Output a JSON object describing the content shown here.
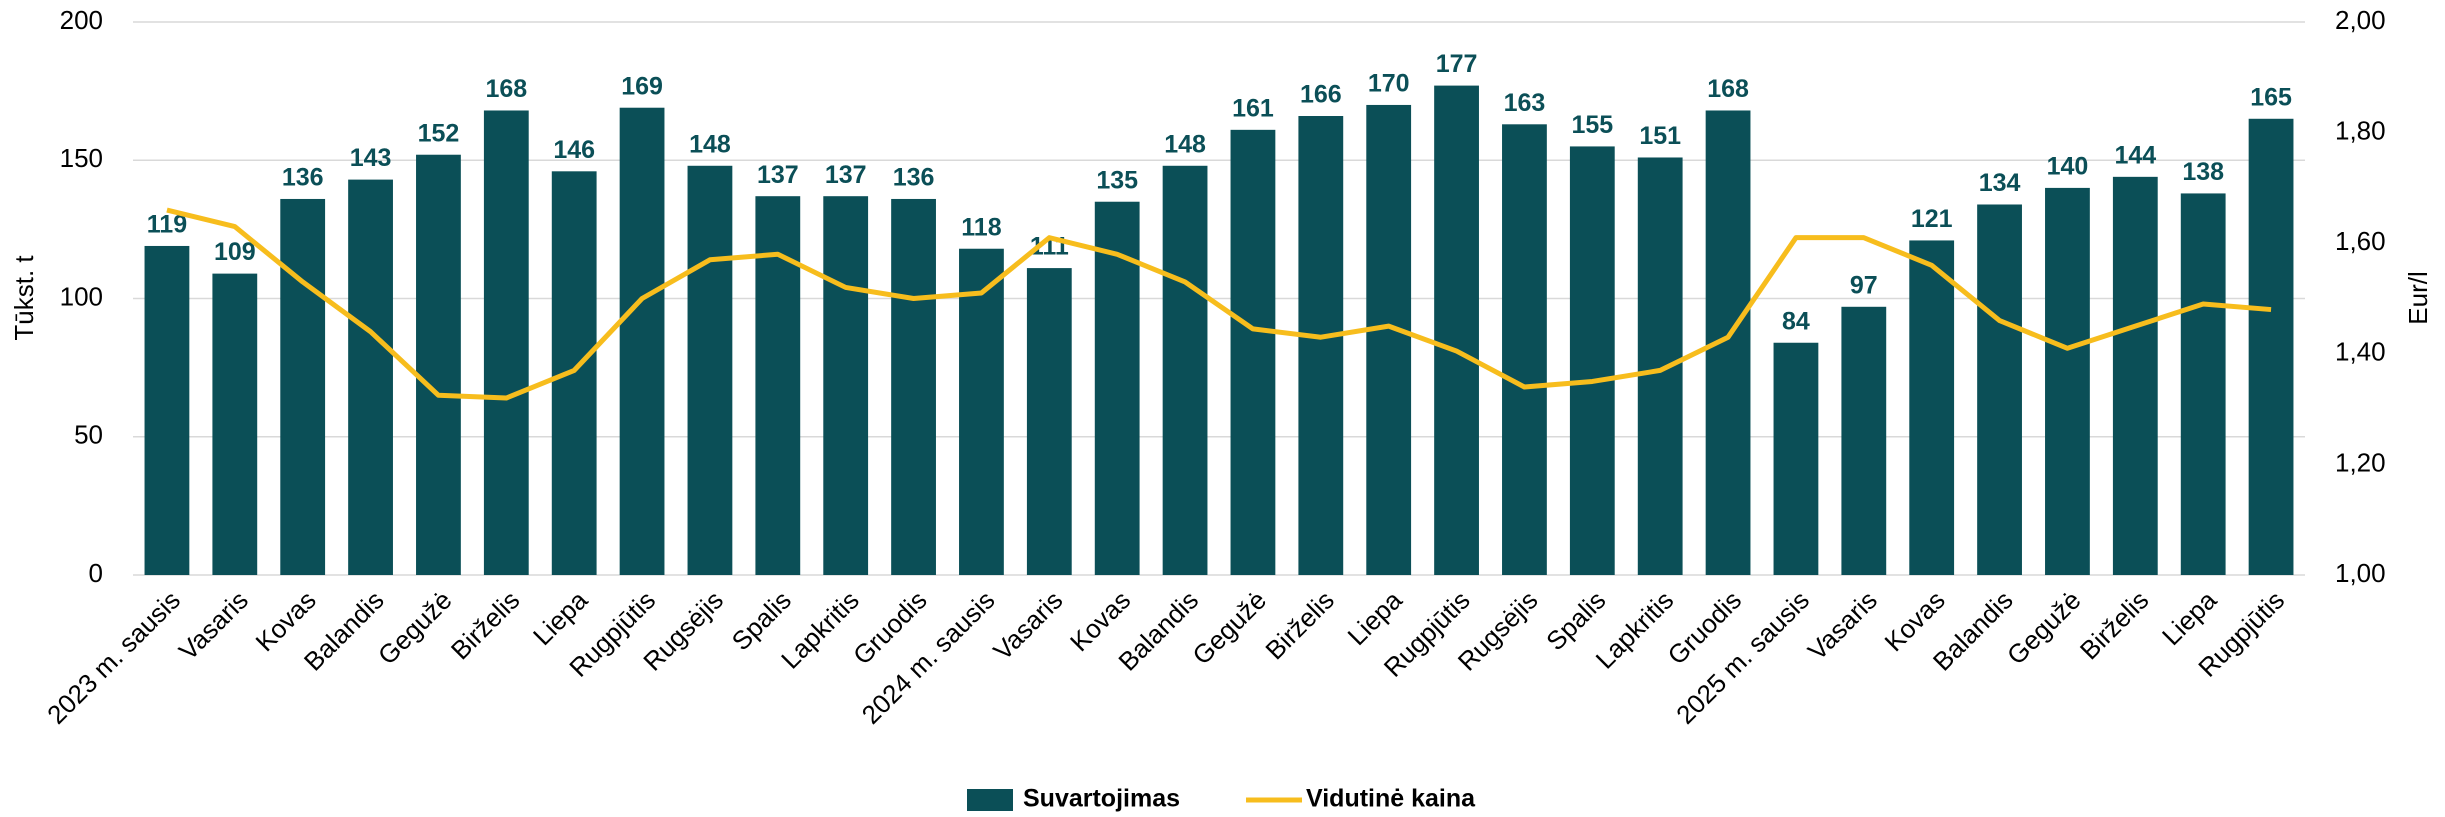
{
  "chart_data": {
    "type": "bar",
    "y_label": "Tūkst. t",
    "y2_label": "Eur/l",
    "categories": [
      "2023 m. sausis",
      "Vasaris",
      "Kovas",
      "Balandis",
      "Gegužė",
      "Birželis",
      "Liepa",
      "Rugpjūtis",
      "Rugsėjis",
      "Spalis",
      "Lapkritis",
      "Gruodis",
      "2024 m. sausis",
      "Vasaris",
      "Kovas",
      "Balandis",
      "Gegužė",
      "Birželis",
      "Liepa",
      "Rugpjūtis",
      "Rugsėjis",
      "Spalis",
      "Lapkritis",
      "Gruodis",
      "2025 m. sausis",
      "Vasaris",
      "Kovas",
      "Balandis",
      "Gegužė",
      "Birželis",
      "Liepa",
      "Rugpjūtis"
    ],
    "series": [
      {
        "name": "Suvartojimas",
        "type": "bar",
        "color": "#0b4f57",
        "values": [
          119,
          109,
          136,
          143,
          152,
          168,
          146,
          169,
          148,
          137,
          137,
          136,
          118,
          111,
          135,
          148,
          161,
          166,
          170,
          177,
          163,
          155,
          151,
          168,
          84,
          97,
          121,
          134,
          140,
          144,
          138,
          165
        ]
      },
      {
        "name": "Vidutinė kaina",
        "type": "line",
        "color": "#f7bd1d",
        "axis": "y2",
        "values": [
          1.66,
          1.63,
          1.53,
          1.44,
          1.325,
          1.32,
          1.37,
          1.5,
          1.57,
          1.58,
          1.52,
          1.5,
          1.51,
          1.61,
          1.58,
          1.53,
          1.445,
          1.43,
          1.45,
          1.405,
          1.34,
          1.35,
          1.37,
          1.43,
          1.61,
          1.61,
          1.56,
          1.46,
          1.41,
          1.45,
          1.49,
          1.48
        ]
      }
    ],
    "ylim": [
      0,
      200
    ],
    "yticks": [
      0,
      50,
      100,
      150,
      200
    ],
    "y2lim": [
      1,
      2
    ],
    "y2ticks": [
      {
        "value": 1,
        "label": "1,00"
      },
      {
        "value": 1.2,
        "label": "1,20"
      },
      {
        "value": 1.4,
        "label": "1,40"
      },
      {
        "value": 1.6,
        "label": "1,60"
      },
      {
        "value": 1.8,
        "label": "1,80"
      },
      {
        "value": 2,
        "label": "2,00"
      }
    ],
    "grid": true,
    "legend": "bottom"
  }
}
